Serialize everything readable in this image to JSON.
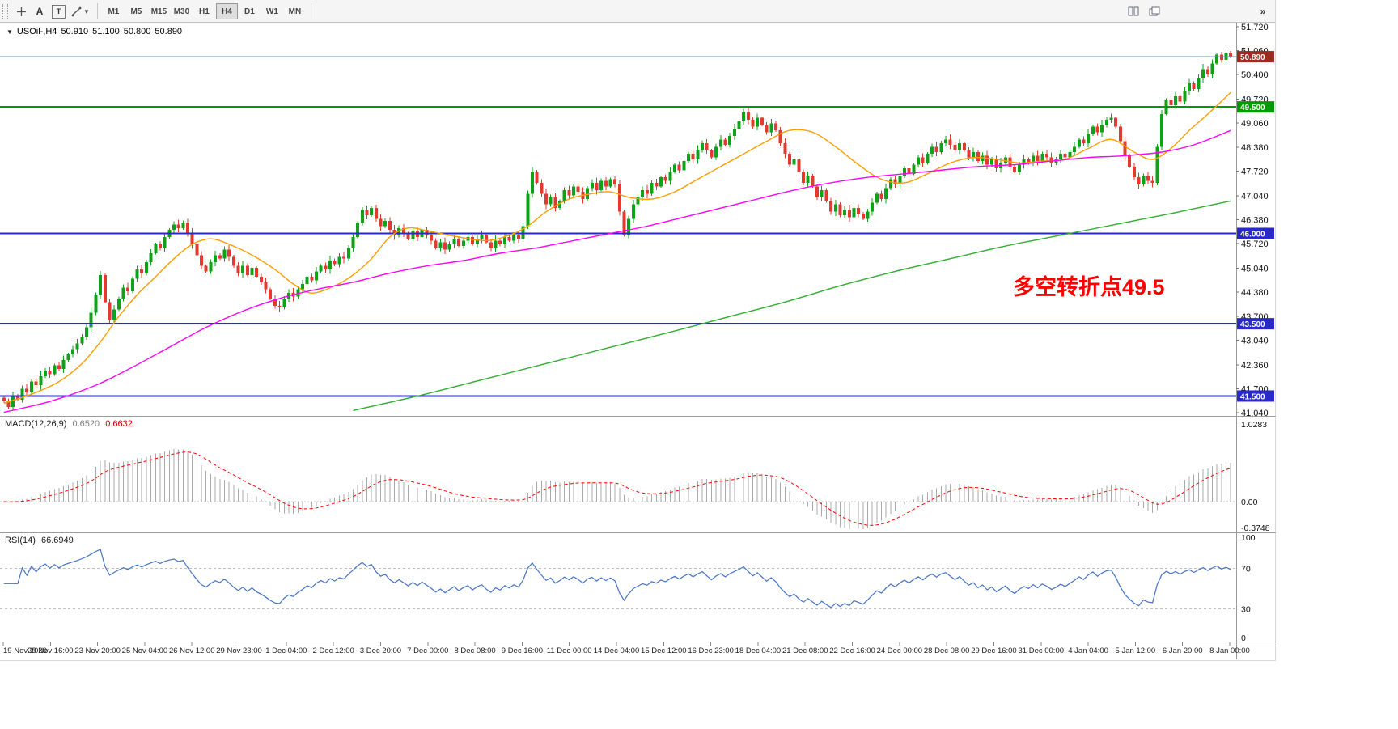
{
  "toolbar": {
    "text_tool_label": "A",
    "label_tool_label": "T",
    "overflow_glyph": "»",
    "timeframes": [
      "M1",
      "M5",
      "M15",
      "M30",
      "H1",
      "H4",
      "D1",
      "W1",
      "MN"
    ],
    "active_timeframe": "H4"
  },
  "chart_header": {
    "collapse_icon": "▼",
    "symbol": "USOil-,H4",
    "open": "50.910",
    "high": "51.100",
    "low": "50.800",
    "close": "50.890"
  },
  "annotation": {
    "text": "多空转折点49.5",
    "color": "#ff0000"
  },
  "price_axis": {
    "ticks": [
      "51.720",
      "51.060",
      "50.400",
      "49.720",
      "49.060",
      "48.380",
      "47.720",
      "47.040",
      "46.380",
      "45.720",
      "45.040",
      "44.380",
      "43.700",
      "43.040",
      "42.360",
      "41.700",
      "41.040"
    ],
    "badges": [
      {
        "text": "50.890",
        "price": 50.89,
        "bg": "#9c2a21"
      },
      {
        "text": "49.500",
        "price": 49.5,
        "bg": "#009b00"
      },
      {
        "text": "46.000",
        "price": 46.0,
        "bg": "#2929c8"
      },
      {
        "text": "43.500",
        "price": 43.5,
        "bg": "#2929c8"
      },
      {
        "text": "41.500",
        "price": 41.5,
        "bg": "#2929c8"
      }
    ]
  },
  "hlines": [
    {
      "price": 49.5,
      "color": "#009b00",
      "width": 2,
      "name": "hline-49.5"
    },
    {
      "price": 46.0,
      "color": "#2929c8",
      "width": 2,
      "name": "hline-46.0"
    },
    {
      "price": 43.5,
      "color": "#2929c8",
      "width": 2,
      "name": "hline-43.5"
    },
    {
      "price": 41.5,
      "color": "#2929c8",
      "width": 2,
      "name": "hline-41.5"
    }
  ],
  "bid_line": {
    "price": 50.89,
    "color": "#6b93c9",
    "width": 1
  },
  "chart_data": {
    "type": "candlestick",
    "title": "USOil-,H4",
    "symbol": "USOil",
    "timeframe": "H4",
    "ylim": [
      41.04,
      51.72
    ],
    "first_open": 41.45,
    "up_color": "#0fa218",
    "down_color": "#e23a2e",
    "closes": [
      41.35,
      41.2,
      41.5,
      41.4,
      41.7,
      41.6,
      41.9,
      41.8,
      42.05,
      42.2,
      42.1,
      42.35,
      42.25,
      42.5,
      42.65,
      42.8,
      42.95,
      43.15,
      43.4,
      43.8,
      44.3,
      44.85,
      44.1,
      43.6,
      43.9,
      44.2,
      44.5,
      44.4,
      44.75,
      45.0,
      44.9,
      45.2,
      45.45,
      45.7,
      45.6,
      45.9,
      46.1,
      46.25,
      46.15,
      46.3,
      46.0,
      45.7,
      45.4,
      45.1,
      44.95,
      45.2,
      45.4,
      45.3,
      45.55,
      45.35,
      45.1,
      44.9,
      45.1,
      44.85,
      45.05,
      44.8,
      44.65,
      44.45,
      44.2,
      44.0,
      43.95,
      44.2,
      44.35,
      44.25,
      44.45,
      44.6,
      44.8,
      44.7,
      44.95,
      45.1,
      45.0,
      45.25,
      45.15,
      45.35,
      45.3,
      45.6,
      45.9,
      46.3,
      46.65,
      46.5,
      46.7,
      46.4,
      46.2,
      46.35,
      46.1,
      45.95,
      46.15,
      46.0,
      45.85,
      46.05,
      45.9,
      46.1,
      45.95,
      45.8,
      45.6,
      45.75,
      45.55,
      45.7,
      45.85,
      45.65,
      45.8,
      45.9,
      45.7,
      45.85,
      45.95,
      45.75,
      45.6,
      45.8,
      45.7,
      45.9,
      45.8,
      45.95,
      45.85,
      46.2,
      47.1,
      47.7,
      47.4,
      47.1,
      46.8,
      47.0,
      46.7,
      46.9,
      47.2,
      47.05,
      47.3,
      47.15,
      46.95,
      47.25,
      47.4,
      47.2,
      47.45,
      47.3,
      47.5,
      47.35,
      46.6,
      45.95,
      46.4,
      46.8,
      47.0,
      47.2,
      47.1,
      47.4,
      47.3,
      47.55,
      47.45,
      47.7,
      47.9,
      47.75,
      48.0,
      48.2,
      48.05,
      48.3,
      48.5,
      48.3,
      48.1,
      48.4,
      48.6,
      48.45,
      48.7,
      48.9,
      49.1,
      49.35,
      49.15,
      48.95,
      49.2,
      49.0,
      48.8,
      49.05,
      48.85,
      48.5,
      48.2,
      47.9,
      48.05,
      47.7,
      47.4,
      47.6,
      47.3,
      47.0,
      47.2,
      46.9,
      46.6,
      46.8,
      46.5,
      46.65,
      46.45,
      46.7,
      46.55,
      46.4,
      46.6,
      46.85,
      47.1,
      46.95,
      47.25,
      47.5,
      47.35,
      47.6,
      47.8,
      47.65,
      47.9,
      48.1,
      47.95,
      48.2,
      48.4,
      48.25,
      48.5,
      48.6,
      48.45,
      48.3,
      48.5,
      48.3,
      48.1,
      48.25,
      48.0,
      48.15,
      47.9,
      48.05,
      47.8,
      47.95,
      48.1,
      47.85,
      47.7,
      47.9,
      48.05,
      47.95,
      48.15,
      48.0,
      48.2,
      48.1,
      47.95,
      48.05,
      48.2,
      48.1,
      48.25,
      48.4,
      48.6,
      48.5,
      48.75,
      48.95,
      48.8,
      49.0,
      49.15,
      49.2,
      48.95,
      48.55,
      48.15,
      47.85,
      47.55,
      47.35,
      47.6,
      47.45,
      47.4,
      48.4,
      49.3,
      49.7,
      49.55,
      49.8,
      49.65,
      49.95,
      50.15,
      50.0,
      50.3,
      50.55,
      50.4,
      50.7,
      50.95,
      50.8,
      51.0,
      50.89
    ],
    "overlays": [
      {
        "name": "ma-fast",
        "color": "#ff9c00",
        "points": [
          [
            0,
            41.3
          ],
          [
            6,
            41.55
          ],
          [
            12,
            41.9
          ],
          [
            17,
            42.4
          ],
          [
            21,
            43.0
          ],
          [
            25,
            43.7
          ],
          [
            29,
            44.3
          ],
          [
            33,
            44.8
          ],
          [
            37,
            45.3
          ],
          [
            41,
            45.7
          ],
          [
            45,
            45.85
          ],
          [
            49,
            45.7
          ],
          [
            54,
            45.4
          ],
          [
            59,
            45.0
          ],
          [
            63,
            44.6
          ],
          [
            67,
            44.35
          ],
          [
            72,
            44.55
          ],
          [
            76,
            44.85
          ],
          [
            80,
            45.3
          ],
          [
            84,
            45.9
          ],
          [
            88,
            46.15
          ],
          [
            93,
            46.05
          ],
          [
            99,
            45.9
          ],
          [
            105,
            45.8
          ],
          [
            110,
            45.95
          ],
          [
            114,
            46.2
          ],
          [
            118,
            46.6
          ],
          [
            123,
            46.95
          ],
          [
            128,
            47.1
          ],
          [
            132,
            47.15
          ],
          [
            136,
            47.0
          ],
          [
            141,
            46.95
          ],
          [
            146,
            47.15
          ],
          [
            151,
            47.5
          ],
          [
            156,
            47.85
          ],
          [
            161,
            48.2
          ],
          [
            166,
            48.55
          ],
          [
            171,
            48.85
          ],
          [
            176,
            48.8
          ],
          [
            181,
            48.4
          ],
          [
            186,
            47.9
          ],
          [
            191,
            47.5
          ],
          [
            196,
            47.4
          ],
          [
            201,
            47.65
          ],
          [
            206,
            47.95
          ],
          [
            211,
            48.1
          ],
          [
            216,
            48.05
          ],
          [
            221,
            47.95
          ],
          [
            226,
            48.0
          ],
          [
            231,
            48.05
          ],
          [
            236,
            48.35
          ],
          [
            241,
            48.6
          ],
          [
            246,
            48.25
          ],
          [
            250,
            48.05
          ],
          [
            254,
            48.35
          ],
          [
            258,
            48.85
          ],
          [
            262,
            49.3
          ],
          [
            267,
            49.9
          ]
        ]
      },
      {
        "name": "ma-medium",
        "color": "#ff00ff",
        "points": [
          [
            0,
            41.05
          ],
          [
            10,
            41.35
          ],
          [
            20,
            41.8
          ],
          [
            28,
            42.3
          ],
          [
            36,
            42.85
          ],
          [
            44,
            43.4
          ],
          [
            52,
            43.85
          ],
          [
            60,
            44.2
          ],
          [
            68,
            44.45
          ],
          [
            76,
            44.65
          ],
          [
            84,
            44.9
          ],
          [
            92,
            45.1
          ],
          [
            100,
            45.25
          ],
          [
            108,
            45.45
          ],
          [
            116,
            45.6
          ],
          [
            124,
            45.8
          ],
          [
            132,
            46.0
          ],
          [
            140,
            46.2
          ],
          [
            148,
            46.45
          ],
          [
            156,
            46.7
          ],
          [
            164,
            46.95
          ],
          [
            172,
            47.2
          ],
          [
            180,
            47.4
          ],
          [
            188,
            47.55
          ],
          [
            196,
            47.65
          ],
          [
            204,
            47.75
          ],
          [
            212,
            47.85
          ],
          [
            220,
            47.9
          ],
          [
            228,
            48.0
          ],
          [
            236,
            48.1
          ],
          [
            244,
            48.15
          ],
          [
            252,
            48.25
          ],
          [
            259,
            48.45
          ],
          [
            267,
            48.85
          ]
        ]
      },
      {
        "name": "ma-slow",
        "color": "#2fae2f",
        "points": [
          [
            76,
            41.1
          ],
          [
            90,
            41.5
          ],
          [
            104,
            41.95
          ],
          [
            118,
            42.4
          ],
          [
            132,
            42.85
          ],
          [
            146,
            43.3
          ],
          [
            158,
            43.7
          ],
          [
            170,
            44.1
          ],
          [
            182,
            44.55
          ],
          [
            194,
            44.95
          ],
          [
            206,
            45.3
          ],
          [
            218,
            45.65
          ],
          [
            230,
            45.95
          ],
          [
            242,
            46.25
          ],
          [
            254,
            46.55
          ],
          [
            267,
            46.9
          ]
        ]
      }
    ],
    "indicators": [
      {
        "type": "MACD",
        "label": "MACD(12,26,9)",
        "params": [
          12,
          26,
          9
        ],
        "value_main": "0.6520",
        "value_signal": "0.6632",
        "axis_labels": [
          "1.0283",
          "0.00",
          "-0.3748"
        ],
        "histogram_color": "#a9a9a9",
        "signal_color": "#ff0000"
      },
      {
        "type": "RSI",
        "label": "RSI(14)",
        "period": 14,
        "value": "66.6949",
        "levels": [
          70,
          30
        ],
        "axis_labels": [
          "100",
          "70",
          "30",
          "0"
        ],
        "line_color": "#4472c4",
        "level_color": "#c0c0c0"
      }
    ],
    "time_axis": [
      "19 Nov 2020",
      "20 Nov 16:00",
      "23 Nov 20:00",
      "25 Nov 04:00",
      "26 Nov 12:00",
      "29 Nov 23:00",
      "1 Dec 04:00",
      "2 Dec 12:00",
      "3 Dec 20:00",
      "7 Dec 00:00",
      "8 Dec 08:00",
      "9 Dec 16:00",
      "11 Dec 00:00",
      "14 Dec 04:00",
      "15 Dec 12:00",
      "16 Dec 23:00",
      "18 Dec 04:00",
      "21 Dec 08:00",
      "22 Dec 16:00",
      "24 Dec 00:00",
      "28 Dec 08:00",
      "29 Dec 16:00",
      "31 Dec 00:00",
      "4 Jan 04:00",
      "5 Jan 12:00",
      "6 Jan 20:00",
      "8 Jan 00:00"
    ]
  }
}
